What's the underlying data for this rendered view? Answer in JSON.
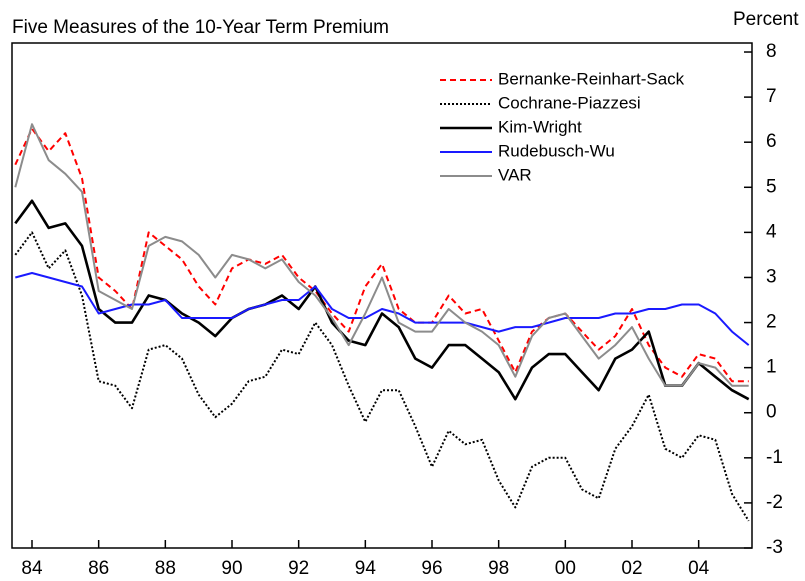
{
  "chart_data": {
    "type": "line",
    "title": "Five Measures of the 10-Year Term Premium",
    "y_label": "Percent",
    "x": [
      1983.5,
      1984,
      1984.5,
      1985,
      1985.5,
      1986,
      1986.5,
      1987,
      1987.5,
      1988,
      1988.5,
      1989,
      1989.5,
      1990,
      1990.5,
      1991,
      1991.5,
      1992,
      1992.5,
      1993,
      1993.5,
      1994,
      1994.5,
      1995,
      1995.5,
      1996,
      1996.5,
      1997,
      1997.5,
      1998,
      1998.5,
      1999,
      1999.5,
      2000,
      2000.5,
      2001,
      2001.5,
      2002,
      2002.5,
      2003,
      2003.5,
      2004,
      2004.5,
      2005,
      2005.5
    ],
    "series": [
      {
        "name": "Bernanke-Reinhart-Sack",
        "color": "#ff0000",
        "style": "dashed",
        "values": [
          5.5,
          6.3,
          5.8,
          6.2,
          5.2,
          3.0,
          2.7,
          2.3,
          4.0,
          3.7,
          3.4,
          2.8,
          2.4,
          3.2,
          3.4,
          3.3,
          3.5,
          3.0,
          2.7,
          2.2,
          1.8,
          2.8,
          3.3,
          2.3,
          2.0,
          2.0,
          2.6,
          2.2,
          2.3,
          1.6,
          0.9,
          1.8,
          2.1,
          2.2,
          1.8,
          1.4,
          1.7,
          2.3,
          1.5,
          1.0,
          0.8,
          1.3,
          1.2,
          0.7,
          0.7
        ]
      },
      {
        "name": "Cochrane-Piazzesi",
        "color": "#000000",
        "style": "dotted",
        "values": [
          3.5,
          4.0,
          3.2,
          3.6,
          2.6,
          0.7,
          0.6,
          0.1,
          1.4,
          1.5,
          1.2,
          0.4,
          -0.1,
          0.2,
          0.7,
          0.8,
          1.4,
          1.3,
          2.0,
          1.5,
          0.6,
          -0.2,
          0.5,
          0.5,
          -0.3,
          -1.2,
          -0.4,
          -0.7,
          -0.6,
          -1.5,
          -2.1,
          -1.2,
          -1.0,
          -1.0,
          -1.7,
          -1.9,
          -0.8,
          -0.3,
          0.4,
          -0.8,
          -1.0,
          -0.5,
          -0.6,
          -1.8,
          -2.4
        ]
      },
      {
        "name": "Kim-Wright",
        "color": "#000000",
        "style": "solid",
        "values": [
          4.2,
          4.7,
          4.1,
          4.2,
          3.7,
          2.3,
          2.0,
          2.0,
          2.6,
          2.5,
          2.2,
          2.0,
          1.7,
          2.1,
          2.3,
          2.4,
          2.6,
          2.3,
          2.8,
          2.0,
          1.6,
          1.5,
          2.2,
          1.9,
          1.2,
          1.0,
          1.5,
          1.5,
          1.2,
          0.9,
          0.3,
          1.0,
          1.3,
          1.3,
          0.9,
          0.5,
          1.2,
          1.4,
          1.8,
          0.6,
          0.6,
          1.1,
          0.8,
          0.5,
          0.3
        ]
      },
      {
        "name": "Rudebusch-Wu",
        "color": "#1a1aff",
        "style": "solid",
        "values": [
          3.0,
          3.1,
          3.0,
          2.9,
          2.8,
          2.2,
          2.3,
          2.4,
          2.4,
          2.5,
          2.1,
          2.1,
          2.1,
          2.1,
          2.3,
          2.4,
          2.5,
          2.5,
          2.8,
          2.3,
          2.1,
          2.1,
          2.3,
          2.2,
          2.0,
          2.0,
          2.0,
          2.0,
          1.9,
          1.8,
          1.9,
          1.9,
          2.0,
          2.1,
          2.1,
          2.1,
          2.2,
          2.2,
          2.3,
          2.3,
          2.4,
          2.4,
          2.2,
          1.8,
          1.5
        ]
      },
      {
        "name": "VAR",
        "color": "#8c8c8c",
        "style": "solid",
        "values": [
          5.0,
          6.4,
          5.6,
          5.3,
          4.9,
          2.7,
          2.5,
          2.3,
          3.7,
          3.9,
          3.8,
          3.5,
          3.0,
          3.5,
          3.4,
          3.2,
          3.4,
          2.9,
          2.6,
          2.1,
          1.5,
          2.2,
          3.0,
          2.0,
          1.8,
          1.8,
          2.3,
          2.0,
          1.8,
          1.5,
          0.8,
          1.7,
          2.1,
          2.2,
          1.7,
          1.2,
          1.5,
          1.9,
          1.2,
          0.6,
          0.6,
          1.1,
          1.0,
          0.6,
          0.6
        ]
      }
    ],
    "xlim": [
      1983.4,
      2005.6
    ],
    "xticks": [
      {
        "value": 1984,
        "label": "84"
      },
      {
        "value": 1986,
        "label": "86"
      },
      {
        "value": 1988,
        "label": "88"
      },
      {
        "value": 1990,
        "label": "90"
      },
      {
        "value": 1992,
        "label": "92"
      },
      {
        "value": 1994,
        "label": "94"
      },
      {
        "value": 1996,
        "label": "96"
      },
      {
        "value": 1998,
        "label": "98"
      },
      {
        "value": 2000,
        "label": "00"
      },
      {
        "value": 2002,
        "label": "02"
      },
      {
        "value": 2004,
        "label": "04"
      }
    ],
    "ylim": [
      -3,
      8.2
    ],
    "yticks": [
      -3,
      -2,
      -1,
      0,
      1,
      2,
      3,
      4,
      5,
      6,
      7,
      8
    ],
    "legend": "top-right"
  }
}
